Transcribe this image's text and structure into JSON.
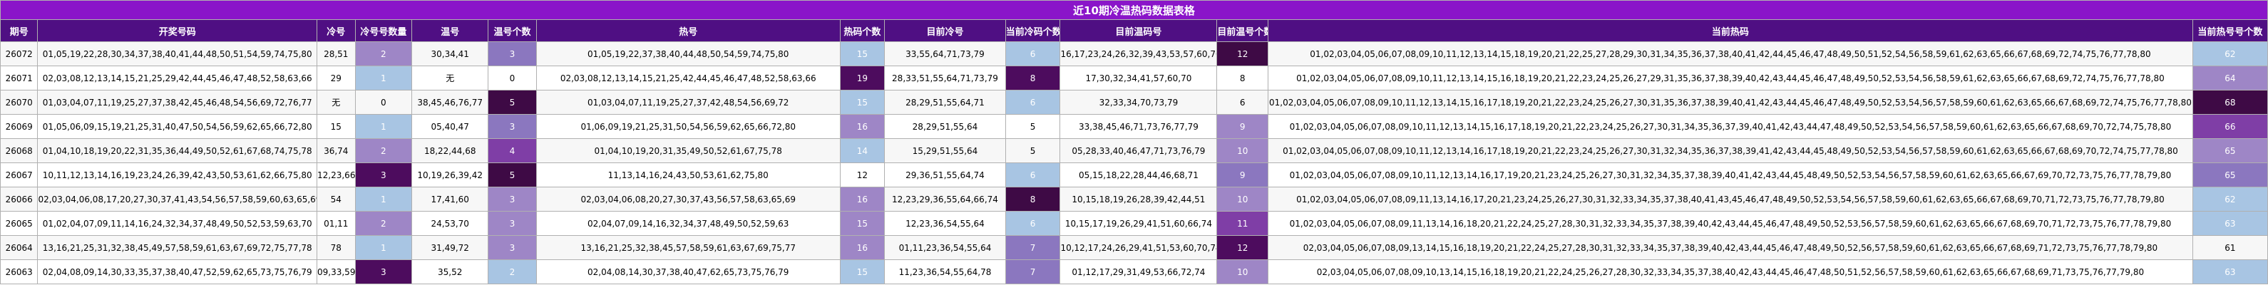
{
  "title": "近10期冷温热码数据表格",
  "headers": [
    "期号",
    "开奖号码",
    "冷号",
    "冷号号数量",
    "温号",
    "温号个数",
    "热号",
    "热码个数",
    "目前冷号",
    "当前冷码个数",
    "目前温码号",
    "目前温号个数",
    "当前热码",
    "当前热号号个数"
  ],
  "colors": {
    "title_bg": "#8a15c9",
    "header_bg": "#4f0f83",
    "c1": "#a8c5e3",
    "c2": "#9e86c6",
    "c3": "#8b77bf",
    "c4": "#7f3ea6",
    "c5": "#4d0c5e",
    "c6": "#3e0a45"
  },
  "rows": [
    {
      "cells": [
        "26072",
        "01,05,19,22,28,30,34,37,38,40,41,44,48,50,51,54,59,74,75,80",
        "28,51",
        "2",
        "30,34,41",
        "3",
        "01,05,19,22,37,38,40,44,48,50,54,59,74,75,80",
        "15",
        "33,55,64,71,73,79",
        "6",
        "16,17,23,24,26,32,39,43,53,57,60,70",
        "12",
        "01,02,03,04,05,06,07,08,09,10,11,12,13,14,15,18,19,20,21,22,25,27,28,29,30,31,34,35,36,37,38,40,41,42,44,45,46,47,48,49,50,51,52,54,56,58,59,61,62,63,65,66,67,68,69,72,74,75,76,77,78,80",
        "62"
      ],
      "badges": [
        null,
        null,
        null,
        "c2",
        null,
        "c3",
        null,
        "c1",
        null,
        "c1",
        null,
        "c6",
        null,
        "c1"
      ]
    },
    {
      "cells": [
        "26071",
        "02,03,08,12,13,14,15,21,25,29,42,44,45,46,47,48,52,58,63,66",
        "29",
        "1",
        "无",
        "0",
        "02,03,08,12,13,14,15,21,25,42,44,45,46,47,48,52,58,63,66",
        "19",
        "28,33,51,55,64,71,73,79",
        "8",
        "17,30,32,34,41,57,60,70",
        "8",
        "01,02,03,04,05,06,07,08,09,10,11,12,13,14,15,16,18,19,20,21,22,23,24,25,26,27,29,31,35,36,37,38,39,40,42,43,44,45,46,47,48,49,50,52,53,54,56,58,59,61,62,63,65,66,67,68,69,72,74,75,76,77,78,80",
        "64"
      ],
      "badges": [
        null,
        null,
        null,
        "c1",
        null,
        null,
        null,
        "c5",
        null,
        "c5",
        null,
        null,
        null,
        "c2"
      ]
    },
    {
      "cells": [
        "26070",
        "01,03,04,07,11,19,25,27,37,38,42,45,46,48,54,56,69,72,76,77",
        "无",
        "0",
        "38,45,46,76,77",
        "5",
        "01,03,04,07,11,19,25,27,37,42,48,54,56,69,72",
        "15",
        "28,29,51,55,64,71",
        "6",
        "32,33,34,70,73,79",
        "6",
        "01,02,03,04,05,06,07,08,09,10,11,12,13,14,15,16,17,18,19,20,21,22,23,24,25,26,27,30,31,35,36,37,38,39,40,41,42,43,44,45,46,47,48,49,50,52,53,54,56,57,58,59,60,61,62,63,65,66,67,68,69,72,74,75,76,77,78,80",
        "68"
      ],
      "badges": [
        null,
        null,
        null,
        null,
        null,
        "c6",
        null,
        "c1",
        null,
        "c1",
        null,
        null,
        null,
        "c6"
      ]
    },
    {
      "cells": [
        "26069",
        "01,05,06,09,15,19,21,25,31,40,47,50,54,56,59,62,65,66,72,80",
        "15",
        "1",
        "05,40,47",
        "3",
        "01,06,09,19,21,25,31,50,54,56,59,62,65,66,72,80",
        "16",
        "28,29,51,55,64",
        "5",
        "33,38,45,46,71,73,76,77,79",
        "9",
        "01,02,03,04,05,06,07,08,09,10,11,12,13,14,15,16,17,18,19,20,21,22,23,24,25,26,27,30,31,34,35,36,37,39,40,41,42,43,44,47,48,49,50,52,53,54,56,57,58,59,60,61,62,63,65,66,67,68,69,70,72,74,75,78,80",
        "66"
      ],
      "badges": [
        null,
        null,
        null,
        "c1",
        null,
        "c3",
        null,
        "c2",
        null,
        null,
        null,
        "c2",
        null,
        "c4"
      ]
    },
    {
      "cells": [
        "26068",
        "01,04,10,18,19,20,22,31,35,36,44,49,50,52,61,67,68,74,75,78",
        "36,74",
        "2",
        "18,22,44,68",
        "4",
        "01,04,10,19,20,31,35,49,50,52,61,67,75,78",
        "14",
        "15,29,51,55,64",
        "5",
        "05,28,33,40,46,47,71,73,76,79",
        "10",
        "01,02,03,04,05,06,07,08,09,10,11,12,13,14,16,17,18,19,20,21,22,23,24,25,26,27,30,31,32,34,35,36,37,38,39,41,42,43,44,45,48,49,50,52,53,54,56,57,58,59,60,61,62,63,65,66,67,68,69,70,72,74,75,77,78,80",
        "65"
      ],
      "badges": [
        null,
        null,
        null,
        "c2",
        null,
        "c4",
        null,
        "c1",
        null,
        null,
        null,
        "c2",
        null,
        "c2"
      ]
    },
    {
      "cells": [
        "26067",
        "10,11,12,13,14,16,19,23,24,26,39,42,43,50,53,61,62,66,75,80",
        "12,23,66",
        "3",
        "10,19,26,39,42",
        "5",
        "11,13,14,16,24,43,50,53,61,62,75,80",
        "12",
        "29,36,51,55,64,74",
        "6",
        "05,15,18,22,28,44,46,68,71",
        "9",
        "01,02,03,04,05,06,07,08,09,10,11,12,13,14,16,17,19,20,21,23,24,25,26,27,30,31,32,34,35,37,38,39,40,41,42,43,44,45,48,49,50,52,53,54,56,57,58,59,60,61,62,63,65,66,67,69,70,72,73,75,76,77,78,79,80",
        "65"
      ],
      "badges": [
        null,
        null,
        null,
        "c5",
        null,
        "c6",
        null,
        null,
        null,
        "c1",
        null,
        "c3",
        null,
        "c3"
      ]
    },
    {
      "cells": [
        "26066",
        "02,03,04,06,08,17,20,27,30,37,41,43,54,56,57,58,59,60,63,65,69",
        "54",
        "1",
        "17,41,60",
        "3",
        "02,03,04,06,08,20,27,30,37,43,56,57,58,63,65,69",
        "16",
        "12,23,29,36,55,64,66,74",
        "8",
        "10,15,18,19,26,28,39,42,44,51",
        "10",
        "01,02,03,04,05,06,07,08,09,11,13,14,16,17,20,21,23,24,25,26,27,30,31,32,33,34,35,37,38,40,41,43,45,46,47,48,49,50,52,53,54,56,57,58,59,60,61,62,63,65,66,67,68,69,70,71,72,73,75,76,77,78,79,80",
        "62"
      ],
      "badges": [
        null,
        null,
        null,
        "c1",
        null,
        "c2",
        null,
        "c2",
        null,
        "c6",
        null,
        "c2",
        null,
        "c1"
      ]
    },
    {
      "cells": [
        "26065",
        "01,02,04,07,09,11,14,16,24,32,34,37,48,49,50,52,53,59,63,70",
        "01,11",
        "2",
        "24,53,70",
        "3",
        "02,04,07,09,14,16,32,34,37,48,49,50,52,59,63",
        "15",
        "12,23,36,54,55,64",
        "6",
        "10,15,17,19,26,29,41,51,60,66,74",
        "11",
        "01,02,03,04,05,06,07,08,09,11,13,14,16,18,20,21,22,24,25,27,28,30,31,32,33,34,35,37,38,39,40,42,43,44,45,46,47,48,49,50,52,53,56,57,58,59,60,61,62,63,65,66,67,68,69,70,71,72,73,75,76,77,78,79,80",
        "63"
      ],
      "badges": [
        null,
        null,
        null,
        "c2",
        null,
        "c2",
        null,
        "c2",
        null,
        "c1",
        null,
        "c4",
        null,
        "c1"
      ]
    },
    {
      "cells": [
        "26064",
        "13,16,21,25,31,32,38,45,49,57,58,59,61,63,67,69,72,75,77,78",
        "78",
        "1",
        "31,49,72",
        "3",
        "13,16,21,25,32,38,45,57,58,59,61,63,67,69,75,77",
        "16",
        "01,11,23,36,54,55,64",
        "7",
        "10,12,17,24,26,29,41,51,53,60,70,74",
        "12",
        "02,03,04,05,06,07,08,09,13,14,15,16,18,19,20,21,22,24,25,27,28,30,31,32,33,34,35,37,38,39,40,42,43,44,45,46,47,48,49,50,52,56,57,58,59,60,61,62,63,65,66,67,68,69,71,72,73,75,76,77,78,79,80",
        "61"
      ],
      "badges": [
        null,
        null,
        null,
        "c1",
        null,
        "c2",
        null,
        "c2",
        null,
        "c3",
        null,
        "c5",
        null,
        null
      ]
    },
    {
      "cells": [
        "26063",
        "02,04,08,09,14,30,33,35,37,38,40,47,52,59,62,65,73,75,76,79",
        "09,33,59",
        "3",
        "35,52",
        "2",
        "02,04,08,14,30,37,38,40,47,62,65,73,75,76,79",
        "15",
        "11,23,36,54,55,64,78",
        "7",
        "01,12,17,29,31,49,53,66,72,74",
        "10",
        "02,03,04,05,06,07,08,09,10,13,14,15,16,18,19,20,21,22,24,25,26,27,28,30,32,33,34,35,37,38,40,42,43,44,45,46,47,48,50,51,52,56,57,58,59,60,61,62,63,65,66,67,68,69,71,73,75,76,77,79,80",
        "63"
      ],
      "badges": [
        null,
        null,
        null,
        "c5",
        null,
        "c1",
        null,
        "c1",
        null,
        "c3",
        null,
        "c2",
        null,
        "c1"
      ]
    }
  ]
}
